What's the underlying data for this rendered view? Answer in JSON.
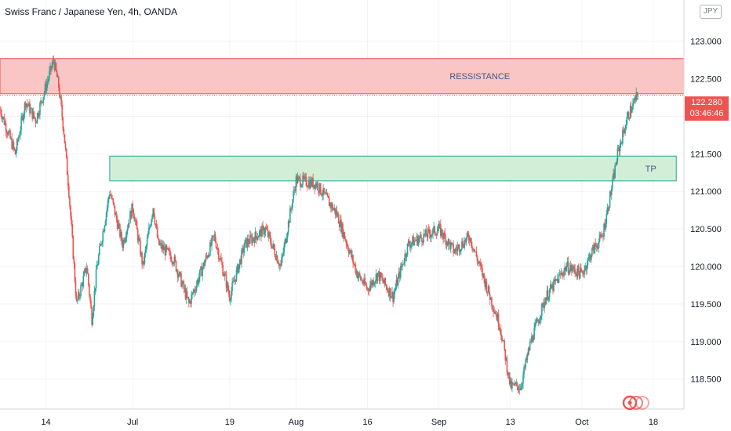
{
  "header": {
    "title": "Swiss Franc / Japanese Yen, 4h, OANDA",
    "currency": "JPY"
  },
  "current_price": {
    "value": "122.280",
    "countdown": "03:46:46"
  },
  "colors": {
    "up": "#26a69a",
    "down": "#ef5350",
    "resistance_fill": "#f9c5c5",
    "resistance_border": "#ef5350",
    "tp_fill": "#d3eed6",
    "tp_border": "#26a69a",
    "zone_text": "#3f5a8a",
    "axis_text": "#131722"
  },
  "chart_data": {
    "type": "candlestick",
    "title": "Swiss Franc / Japanese Yen, 4h, OANDA",
    "ylim": [
      118.1,
      123.55
    ],
    "y_ticks": [
      "123.000",
      "122.500",
      "122.000",
      "121.500",
      "121.000",
      "120.500",
      "120.000",
      "119.500",
      "119.000",
      "118.500"
    ],
    "y_tick_values": [
      123.0,
      122.5,
      122.0,
      121.5,
      121.0,
      120.5,
      120.0,
      119.5,
      119.0,
      118.5
    ],
    "x_ticks": [
      "14",
      "Jul",
      "19",
      "Aug",
      "16",
      "Sep",
      "13",
      "Oct",
      "18"
    ],
    "x_tick_days": [
      0,
      17,
      36,
      49,
      63,
      77,
      91,
      105,
      119
    ],
    "x_range_days": [
      -9,
      125
    ],
    "zones": [
      {
        "label": "RESSISTANCE",
        "top": 122.77,
        "bottom": 122.3,
        "day_start": -9,
        "day_end": 125,
        "color": "red"
      },
      {
        "label": "TP",
        "top": 121.47,
        "bottom": 121.14,
        "day_start": 12.5,
        "day_end": 123.5,
        "color": "green"
      }
    ],
    "path_days": [
      -9,
      -6,
      -4,
      -2,
      0,
      1.5,
      2.5,
      3.5,
      4.5,
      6,
      8,
      9,
      10,
      12.5,
      15,
      17,
      19,
      21,
      22,
      25,
      28,
      33,
      36,
      39,
      43,
      46,
      49,
      53,
      57,
      61,
      63,
      65,
      68,
      71,
      74,
      77,
      80,
      83,
      86,
      89,
      91,
      93,
      95,
      98,
      102,
      105,
      107,
      109,
      111,
      112,
      114,
      116
    ],
    "path_close": [
      122.1,
      121.5,
      122.2,
      121.95,
      122.4,
      122.75,
      122.4,
      121.8,
      121.0,
      119.5,
      120.0,
      119.3,
      120.0,
      121.0,
      120.3,
      120.8,
      120.0,
      120.8,
      120.3,
      120.1,
      119.5,
      120.4,
      119.6,
      120.3,
      120.5,
      120.0,
      121.15,
      121.1,
      120.7,
      119.9,
      119.7,
      119.9,
      119.6,
      120.3,
      120.4,
      120.5,
      120.2,
      120.4,
      119.8,
      119.2,
      118.4,
      118.4,
      119.0,
      119.6,
      120.0,
      119.9,
      120.2,
      120.4,
      121.1,
      121.5,
      122.0,
      122.3
    ],
    "last_price": 122.28
  }
}
